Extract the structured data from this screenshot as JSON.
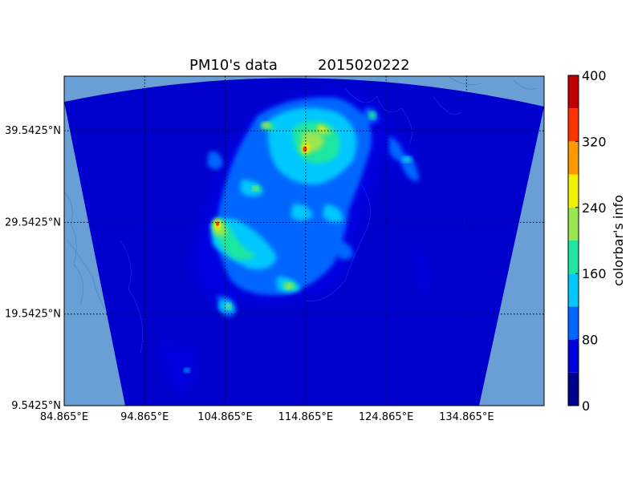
{
  "chart_data": {
    "type": "heatmap",
    "title": "PM10's data",
    "timestamp": "2015020222",
    "x_ticks": [
      "84.865°E",
      "94.865°E",
      "104.865°E",
      "114.865°E",
      "124.865°E",
      "134.865°E"
    ],
    "x_values": [
      84.865,
      94.865,
      104.865,
      114.865,
      124.865,
      134.865
    ],
    "y_ticks": [
      "9.5425°N",
      "19.5425°N",
      "29.5425°N",
      "39.5425°N"
    ],
    "y_values": [
      9.5425,
      19.5425,
      29.5425,
      39.5425
    ],
    "xlim": [
      84.865,
      144.5
    ],
    "ylim": [
      9.5425,
      45.5
    ],
    "colorbar": {
      "label": "colorbar's info",
      "ticks": [
        0,
        80,
        160,
        240,
        320,
        400
      ],
      "levels": [
        0,
        40,
        80,
        120,
        160,
        200,
        240,
        280,
        320,
        360,
        400
      ],
      "colors": [
        "#00008f",
        "#0000e0",
        "#0066ff",
        "#00c8ff",
        "#1ee6a0",
        "#9ae650",
        "#f0f000",
        "#ff9900",
        "#ff3300",
        "#c00000"
      ]
    },
    "colors": {
      "ocean": "#6a9fd6",
      "domain": "#0000cc"
    },
    "grid": true,
    "hotspots": [
      {
        "lon": 116.2,
        "lat": 39.2,
        "value": 320
      },
      {
        "lon": 103.9,
        "lat": 30.6,
        "value": 300
      },
      {
        "lon": 117.5,
        "lat": 39.9,
        "value": 200
      },
      {
        "lon": 113.6,
        "lat": 40.8,
        "value": 150
      },
      {
        "lon": 108.8,
        "lat": 34.2,
        "value": 170
      },
      {
        "lon": 106.5,
        "lat": 29.5,
        "value": 160
      },
      {
        "lon": 113.2,
        "lat": 23.1,
        "value": 200
      },
      {
        "lon": 119.2,
        "lat": 38.0,
        "value": 180
      },
      {
        "lon": 123.5,
        "lat": 41.8,
        "value": 150
      },
      {
        "lon": 126.7,
        "lat": 37.9,
        "value": 300
      },
      {
        "lon": 125.0,
        "lat": 38.6,
        "value": 140
      },
      {
        "lon": 104.8,
        "lat": 20.5,
        "value": 150
      },
      {
        "lon": 117.0,
        "lat": 33.5,
        "value": 120
      },
      {
        "lon": 120.5,
        "lat": 30.5,
        "value": 110
      },
      {
        "lon": 115.9,
        "lat": 28.7,
        "value": 110
      },
      {
        "lon": 123.0,
        "lat": 44.4,
        "value": 130
      },
      {
        "lon": 106.6,
        "lat": 39.2,
        "value": 120
      },
      {
        "lon": 103.0,
        "lat": 37.0,
        "value": 110
      }
    ]
  }
}
